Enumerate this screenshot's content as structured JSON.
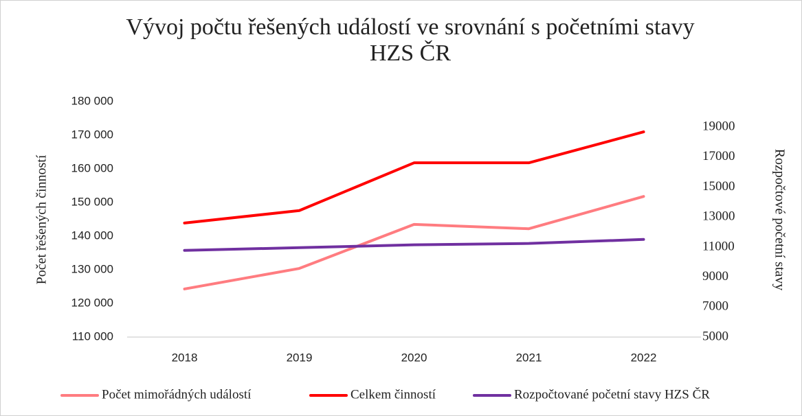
{
  "chart_data": {
    "type": "line",
    "title": "Vývoj počtu řešených událostí ve srovnání s početními stavy",
    "subtitle": "HZS ČR",
    "ylabel": "Počet řešených činností",
    "y2label": "Rozpočtové početní stavy",
    "categories": [
      "2018",
      "2019",
      "2020",
      "2021",
      "2022"
    ],
    "series": [
      {
        "name": "Počet mimořádných událostí",
        "color": "#ff7c80",
        "values": [
          124300,
          130400,
          143500,
          142200,
          151800
        ]
      },
      {
        "name": "Celkem činností",
        "color": "#ff0000",
        "values": [
          143900,
          147600,
          161800,
          161800,
          171000
        ]
      },
      {
        "name": "Rozpočtované početní stavy HZS ČR",
        "color": "#7030a0",
        "axis": "y2",
        "values": [
          10780,
          10960,
          11150,
          11240,
          11510
        ]
      }
    ],
    "ylim": [
      110000,
      180000
    ],
    "yticks": [
      {
        "value": 110000,
        "label": "110 000"
      },
      {
        "value": 120000,
        "label": "120 000"
      },
      {
        "value": 130000,
        "label": "130 000"
      },
      {
        "value": 140000,
        "label": "140 000"
      },
      {
        "value": 150000,
        "label": "150 000"
      },
      {
        "value": 160000,
        "label": "160 000"
      },
      {
        "value": 170000,
        "label": "170 000"
      },
      {
        "value": 180000,
        "label": "180 000"
      }
    ],
    "y2lim": [
      5000,
      20700
    ],
    "y2ticks": [
      5000,
      7000,
      9000,
      11000,
      13000,
      15000,
      17000,
      19000
    ],
    "grid": false,
    "legend": "bottom"
  }
}
